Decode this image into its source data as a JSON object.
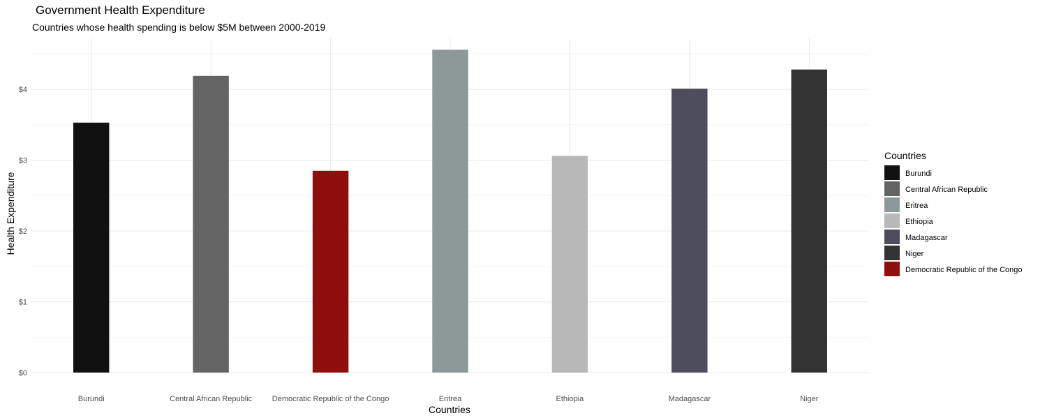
{
  "chart_data": {
    "type": "bar",
    "title": "Government Health Expenditure",
    "subtitle": "Countries whose health spending is below $5M between 2000-2019",
    "xlabel": "Countries",
    "ylabel": "Health Expenditure",
    "categories": [
      "Burundi",
      "Central African Republic",
      "Democratic Republic of the Congo",
      "Eritrea",
      "Ethiopia",
      "Madagascar",
      "Niger"
    ],
    "values": [
      3.53,
      4.19,
      2.85,
      4.56,
      3.06,
      4.01,
      4.28
    ],
    "colors": [
      "#111111",
      "#646464",
      "#8f0f0c",
      "#8d9898",
      "#b8b8b8",
      "#4e4d5c",
      "#333333"
    ],
    "ylim": [
      0,
      4.72
    ],
    "yticks": [
      0,
      1,
      2,
      3,
      4
    ],
    "ytick_labels": [
      "$0",
      "$1",
      "$2",
      "$3",
      "$4"
    ],
    "grid": true,
    "legend": {
      "title": "Countries",
      "position": "right",
      "items": [
        {
          "label": "Burundi",
          "color": "#111111"
        },
        {
          "label": "Central African Republic",
          "color": "#646464"
        },
        {
          "label": "Eritrea",
          "color": "#8d9898"
        },
        {
          "label": "Ethiopia",
          "color": "#b8b8b8"
        },
        {
          "label": "Madagascar",
          "color": "#4e4d5c"
        },
        {
          "label": "Niger",
          "color": "#333333"
        },
        {
          "label": "Democratic Republic of the Congo",
          "color": "#8f0f0c"
        }
      ]
    }
  }
}
